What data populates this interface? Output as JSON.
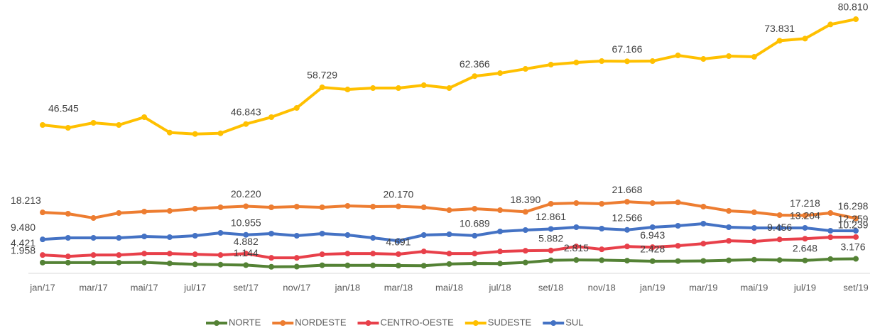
{
  "chart_data": {
    "type": "line",
    "categories": [
      "jan/17",
      null,
      "mar/17",
      null,
      "mai/17",
      null,
      "jul/17",
      null,
      "set/17",
      null,
      "nov/17",
      null,
      "jan/18",
      null,
      "mar/18",
      null,
      "mai/18",
      null,
      "jul/18",
      null,
      "set/18",
      null,
      "nov/18",
      null,
      "jan/19",
      null,
      "mar/19",
      null,
      "mai/19",
      null,
      "jul/19",
      null,
      "set/19"
    ],
    "series": [
      {
        "name": "NORTE",
        "color": "#548235",
        "values": [
          1958,
          1958,
          1958,
          1958,
          2000,
          1700,
          1400,
          1300,
          1144,
          600,
          650,
          1100,
          1050,
          1050,
          1000,
          950,
          1500,
          1700,
          1650,
          2000,
          2700,
          2815,
          2750,
          2600,
          2428,
          2450,
          2500,
          2700,
          2900,
          2800,
          2648,
          3100,
          3176
        ],
        "value_labels": [
          "1.958",
          null,
          null,
          null,
          null,
          null,
          null,
          null,
          "1.144",
          null,
          null,
          null,
          null,
          null,
          null,
          null,
          null,
          null,
          null,
          null,
          null,
          "2.815",
          null,
          null,
          "2.428",
          null,
          null,
          null,
          null,
          null,
          "2.648",
          null,
          "3.176"
        ]
      },
      {
        "name": "NORDESTE",
        "color": "#ed7d31",
        "values": [
          18213,
          17795,
          16415,
          18025,
          18485,
          18715,
          19405,
          19865,
          20220,
          19865,
          20095,
          19865,
          20325,
          20095,
          20170,
          19865,
          18945,
          19405,
          18945,
          18390,
          21015,
          21245,
          21015,
          21668,
          21245,
          21475,
          20095,
          18715,
          18255,
          17335,
          17218,
          18025,
          16298
        ],
        "value_labels": [
          "18.213",
          null,
          null,
          null,
          null,
          null,
          null,
          null,
          "20.220",
          null,
          null,
          null,
          null,
          null,
          "20.170",
          null,
          null,
          null,
          null,
          "18.390",
          null,
          null,
          null,
          "21.668",
          null,
          null,
          null,
          null,
          null,
          null,
          "17.218",
          null,
          "16.298"
        ]
      },
      {
        "name": "CENTRO-OESTE",
        "color": "#e8404a",
        "values": [
          4421,
          3961,
          4421,
          4421,
          4881,
          4881,
          4651,
          4421,
          4882,
          3501,
          3501,
          4651,
          4881,
          4881,
          4691,
          5571,
          4881,
          4881,
          5571,
          5801,
          5882,
          7181,
          6261,
          7181,
          6943,
          7411,
          8101,
          9021,
          8791,
          9456,
          9700,
          10171,
          10239
        ],
        "value_labels": [
          "4.421",
          null,
          null,
          null,
          null,
          null,
          null,
          null,
          "4.882",
          null,
          null,
          null,
          null,
          null,
          "4.691",
          null,
          null,
          null,
          null,
          null,
          "5.882",
          null,
          null,
          null,
          "6.943",
          null,
          null,
          null,
          null,
          "9.456",
          null,
          null,
          "10.239"
        ]
      },
      {
        "name": "SUDESTE",
        "color": "#ffc000",
        "values": [
          46545,
          45625,
          47235,
          46545,
          49075,
          44085,
          43625,
          43855,
          46843,
          49075,
          52065,
          58729,
          58040,
          58500,
          58500,
          59420,
          58500,
          62366,
          63325,
          64705,
          66085,
          66775,
          67235,
          67166,
          67235,
          69075,
          67925,
          68845,
          68615,
          73831,
          74515,
          79115,
          80810
        ],
        "value_labels": [
          "46.545",
          null,
          null,
          null,
          null,
          null,
          null,
          null,
          "46.843",
          null,
          null,
          "58.729",
          null,
          null,
          null,
          null,
          null,
          "62.366",
          null,
          null,
          null,
          null,
          null,
          "67.166",
          null,
          null,
          null,
          null,
          null,
          "73.831",
          null,
          null,
          "80.810"
        ]
      },
      {
        "name": "SUL",
        "color": "#4472c4",
        "values": [
          9480,
          9975,
          9975,
          9975,
          10435,
          10205,
          10665,
          11585,
          10955,
          11355,
          10665,
          11355,
          10895,
          9975,
          9000,
          10895,
          11125,
          10689,
          12045,
          12505,
          12861,
          13425,
          12965,
          12566,
          13425,
          13885,
          14575,
          13425,
          13195,
          13195,
          13204,
          12275,
          12259
        ],
        "value_labels": [
          "9.480",
          null,
          null,
          null,
          null,
          null,
          null,
          null,
          "10.955",
          null,
          null,
          null,
          null,
          null,
          null,
          null,
          null,
          "10.689",
          null,
          null,
          "12.861",
          null,
          null,
          "12.566",
          null,
          null,
          null,
          null,
          null,
          null,
          "13.204",
          null,
          "12.259"
        ]
      }
    ],
    "legend": "bottom"
  }
}
